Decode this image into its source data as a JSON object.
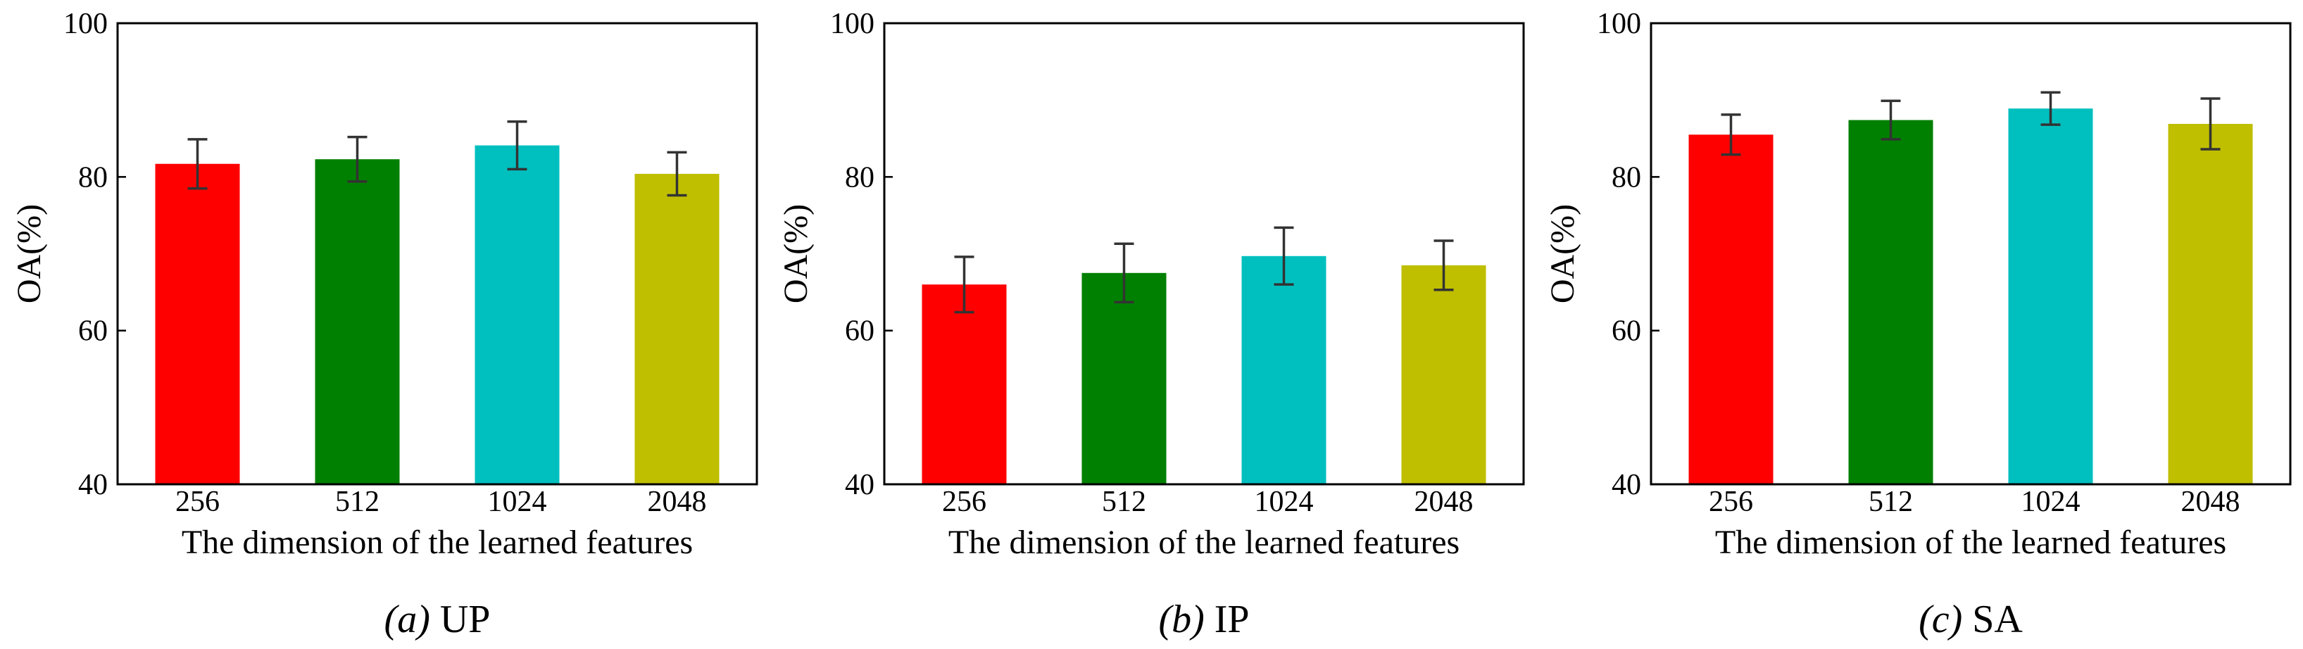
{
  "chart_data": [
    {
      "type": "bar",
      "caption_prefix": "(a)",
      "caption_name": "UP",
      "xlabel": "The dimension of the learned features",
      "ylabel": "OA(%)",
      "ylim": [
        40,
        100
      ],
      "yticks": [
        "40",
        "60",
        "80",
        "100"
      ],
      "categories": [
        "256",
        "512",
        "1024",
        "2048"
      ],
      "values": [
        81.7,
        82.3,
        84.1,
        80.4
      ],
      "errors": [
        3.2,
        2.9,
        3.1,
        2.8
      ],
      "colors": [
        "#ff0000",
        "#008000",
        "#00bfbf",
        "#bfbf00"
      ]
    },
    {
      "type": "bar",
      "caption_prefix": "(b)",
      "caption_name": "IP",
      "xlabel": "The dimension of the learned features",
      "ylabel": "OA(%)",
      "ylim": [
        40,
        100
      ],
      "yticks": [
        "40",
        "60",
        "80",
        "100"
      ],
      "categories": [
        "256",
        "512",
        "1024",
        "2048"
      ],
      "values": [
        66.0,
        67.5,
        69.7,
        68.5
      ],
      "errors": [
        3.6,
        3.8,
        3.7,
        3.2
      ],
      "colors": [
        "#ff0000",
        "#008000",
        "#00bfbf",
        "#bfbf00"
      ]
    },
    {
      "type": "bar",
      "caption_prefix": "(c)",
      "caption_name": "SA",
      "xlabel": "The dimension of the learned features",
      "ylabel": "OA(%)",
      "ylim": [
        40,
        100
      ],
      "yticks": [
        "40",
        "60",
        "80",
        "100"
      ],
      "categories": [
        "256",
        "512",
        "1024",
        "2048"
      ],
      "values": [
        85.5,
        87.4,
        88.9,
        86.9
      ],
      "errors": [
        2.6,
        2.5,
        2.1,
        3.3
      ],
      "colors": [
        "#ff0000",
        "#008000",
        "#00bfbf",
        "#bfbf00"
      ]
    }
  ]
}
